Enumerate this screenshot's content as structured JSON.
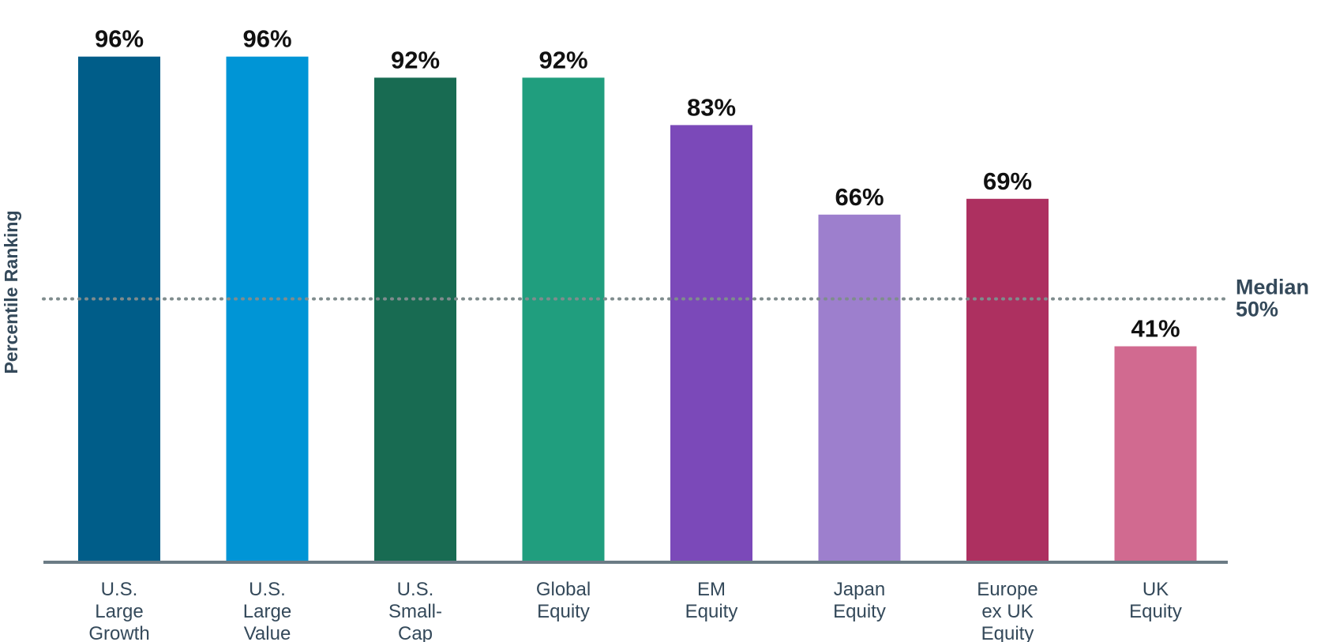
{
  "chart_data": {
    "type": "bar",
    "ylabel": "Percentile Ranking",
    "ylim": [
      0,
      100
    ],
    "categories": [
      [
        "U.S.",
        "Large",
        "Growth"
      ],
      [
        "U.S.",
        "Large",
        "Value"
      ],
      [
        "U.S.",
        "Small-",
        "Cap"
      ],
      [
        "Global",
        "Equity"
      ],
      [
        "EM",
        "Equity"
      ],
      [
        "Japan",
        "Equity"
      ],
      [
        "Europe",
        "ex UK",
        "Equity"
      ],
      [
        "UK",
        "Equity"
      ]
    ],
    "values": [
      96,
      96,
      92,
      92,
      83,
      66,
      69,
      41
    ],
    "value_labels": [
      "96%",
      "96%",
      "92%",
      "92%",
      "83%",
      "66%",
      "69%",
      "41%"
    ],
    "colors": [
      "#005d89",
      "#0095d6",
      "#186b52",
      "#209e7e",
      "#7b49b9",
      "#9d7fcd",
      "#ad3060",
      "#d16a90"
    ],
    "reference_line": {
      "value": 50,
      "label_lines": [
        "Median",
        "50%"
      ],
      "color": "#7f8c8d"
    },
    "axis_color": "#6b7b85",
    "grid": false,
    "legend": "none"
  }
}
